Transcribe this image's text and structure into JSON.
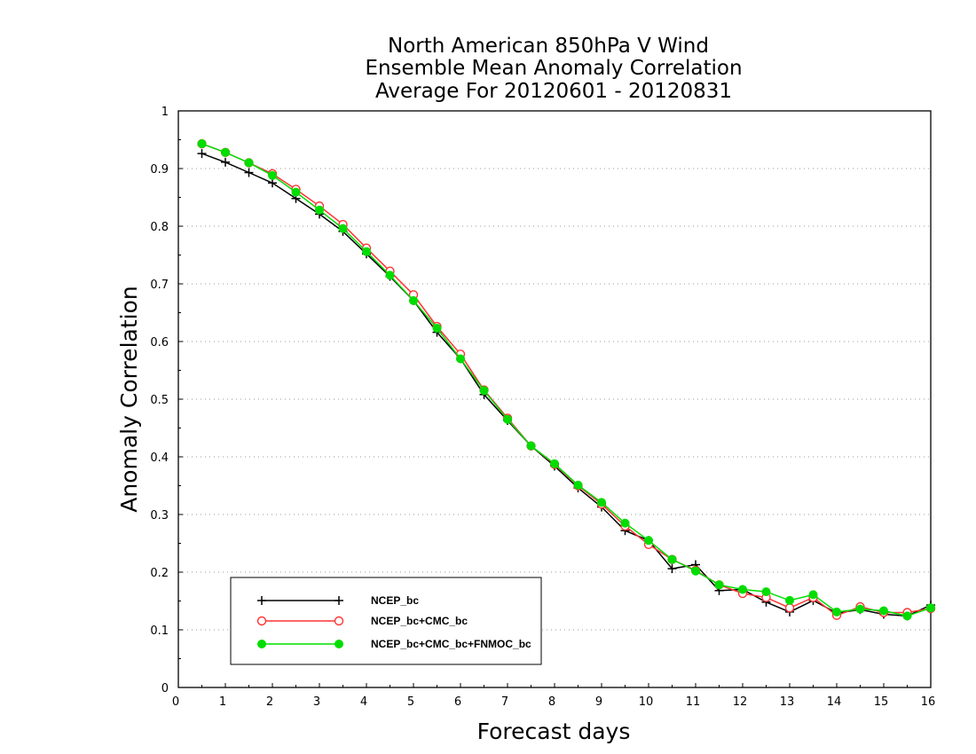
{
  "chart_data": {
    "type": "line",
    "title": [
      "North American 850hPa V Wind",
      "Ensemble Mean Anomaly Correlation",
      "Average For 20120601 - 20120831"
    ],
    "xlabel": "Forecast days",
    "ylabel": "Anomaly Correlation",
    "xlim": [
      0,
      16
    ],
    "ylim": [
      0,
      1
    ],
    "xticks": [
      "0",
      "1",
      "2",
      "3",
      "4",
      "5",
      "6",
      "7",
      "8",
      "9",
      "10",
      "11",
      "12",
      "13",
      "14",
      "15",
      "16"
    ],
    "yticks": [
      "0",
      "0.1",
      "0.2",
      "0.3",
      "0.4",
      "0.5",
      "0.6",
      "0.7",
      "0.8",
      "0.9",
      "1"
    ],
    "grid": "horizontal dotted",
    "legend_position": "bottom-left",
    "x": [
      0.5,
      1,
      1.5,
      2,
      2.5,
      3,
      3.5,
      4,
      4.5,
      5,
      5.5,
      6,
      6.5,
      7,
      7.5,
      8,
      8.5,
      9,
      9.5,
      10,
      10.5,
      11,
      11.5,
      12,
      12.5,
      13,
      13.5,
      14,
      14.5,
      15,
      15.5,
      16
    ],
    "series": [
      {
        "name": "NCEP_bc",
        "color": "#000000",
        "marker": "plus",
        "values": [
          0.926,
          0.911,
          0.893,
          0.875,
          0.848,
          0.821,
          0.791,
          0.752,
          0.713,
          0.671,
          0.616,
          0.57,
          0.508,
          0.463,
          0.419,
          0.384,
          0.346,
          0.313,
          0.272,
          0.255,
          0.206,
          0.213,
          0.168,
          0.17,
          0.148,
          0.131,
          0.151,
          0.129,
          0.135,
          0.127,
          0.124,
          0.143
        ]
      },
      {
        "name": "NCEP_bc+CMC_bc",
        "color": "#ff3333",
        "marker": "circle",
        "values": [
          0.943,
          0.928,
          0.91,
          0.891,
          0.864,
          0.835,
          0.803,
          0.762,
          0.722,
          0.681,
          0.626,
          0.578,
          0.516,
          0.467,
          0.419,
          0.387,
          0.35,
          0.318,
          0.28,
          0.248,
          0.222,
          0.203,
          0.178,
          0.163,
          0.156,
          0.138,
          0.156,
          0.125,
          0.14,
          0.13,
          0.13,
          0.137
        ]
      },
      {
        "name": "NCEP_bc+CMC_bc+FNMOC_bc",
        "color": "#00dd00",
        "marker": "dot",
        "values": [
          0.943,
          0.928,
          0.91,
          0.888,
          0.859,
          0.828,
          0.796,
          0.756,
          0.715,
          0.671,
          0.623,
          0.57,
          0.515,
          0.465,
          0.419,
          0.388,
          0.351,
          0.321,
          0.285,
          0.255,
          0.222,
          0.202,
          0.178,
          0.17,
          0.166,
          0.151,
          0.161,
          0.131,
          0.136,
          0.133,
          0.124,
          0.138
        ]
      }
    ]
  }
}
